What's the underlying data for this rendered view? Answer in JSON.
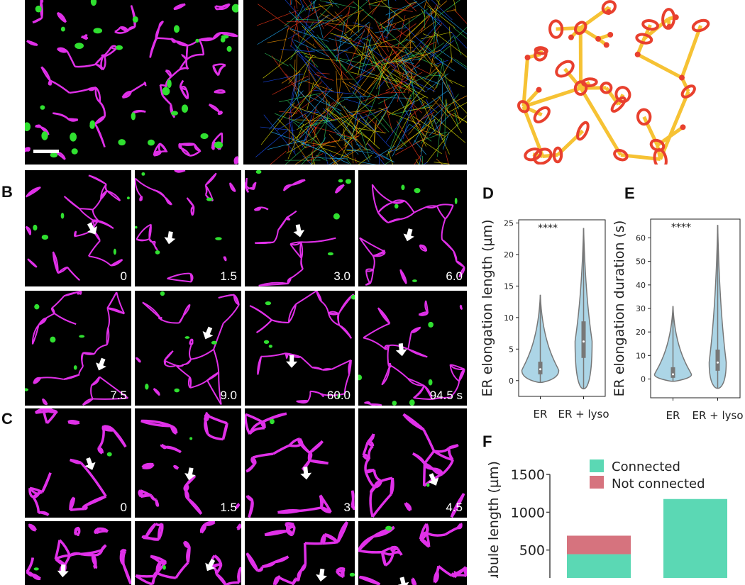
{
  "panels": {
    "B": "B",
    "C": "C",
    "D": "D",
    "E": "E",
    "F": "F"
  },
  "panel_b_times": [
    "0",
    "1.5",
    "3.0",
    "6.0",
    "7.5",
    "9.0",
    "60.0",
    "94.5 s"
  ],
  "panel_c_times": [
    "0",
    "1.5",
    "3",
    "4.5",
    "",
    "",
    "",
    ""
  ],
  "colors": {
    "er": "#e030e8",
    "lyso": "#30e030",
    "node": "#e8402e",
    "edge": "#f6c234",
    "violin": "#acd5e6",
    "connected": "#5bd8b4",
    "not_connected": "#d6737e"
  },
  "chart_data": [
    {
      "type": "violin",
      "panel": "D",
      "ylabel": "ER elongation length (µm)",
      "categories": [
        "ER",
        "ER + lyso"
      ],
      "yticks": [
        0,
        5,
        10,
        15,
        20,
        25
      ],
      "ylim": [
        -2.5,
        25.5
      ],
      "significance": "****",
      "series": [
        {
          "name": "ER",
          "median": 1.8,
          "q1": 1.0,
          "q3": 3.0,
          "min": -0.3,
          "max": 13.6
        },
        {
          "name": "ER + lyso",
          "median": 6.2,
          "q1": 3.6,
          "q3": 9.4,
          "min": -1.3,
          "max": 24.2
        }
      ]
    },
    {
      "type": "violin",
      "panel": "E",
      "ylabel": "ER elongation duration (s)",
      "categories": [
        "ER",
        "ER + lyso"
      ],
      "yticks": [
        0,
        10,
        20,
        30,
        40,
        50,
        60
      ],
      "ylim": [
        -8,
        68
      ],
      "significance": "****",
      "series": [
        {
          "name": "ER",
          "median": 2,
          "q1": 0.5,
          "q3": 5,
          "min": -1,
          "max": 31
        },
        {
          "name": "ER + lyso",
          "median": 7,
          "q1": 3.5,
          "q3": 12.5,
          "min": -4,
          "max": 65.5
        }
      ]
    },
    {
      "type": "bar",
      "stacked": true,
      "panel": "F",
      "ylabel": "Tubule length (µm)",
      "yticks": [
        500,
        1000,
        1500
      ],
      "legend": [
        "Connected",
        "Not connected"
      ],
      "bars": [
        {
          "connected": 445,
          "not_connected": 245
        },
        {
          "connected": 1175,
          "not_connected": 0
        }
      ]
    }
  ]
}
